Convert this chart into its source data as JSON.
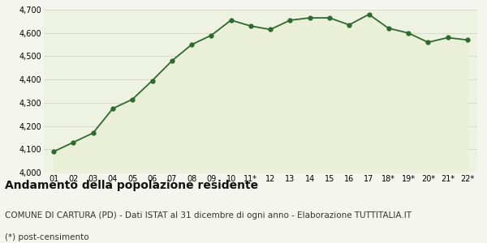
{
  "x_labels": [
    "01",
    "02",
    "03",
    "04",
    "05",
    "06",
    "07",
    "08",
    "09",
    "10",
    "11*",
    "12",
    "13",
    "14",
    "15",
    "16",
    "17",
    "18*",
    "19*",
    "20*",
    "21*",
    "22*"
  ],
  "y_values": [
    4090,
    4130,
    4170,
    4275,
    4315,
    4395,
    4480,
    4550,
    4590,
    4655,
    4630,
    4615,
    4655,
    4665,
    4665,
    4635,
    4680,
    4620,
    4600,
    4560,
    4580,
    4570
  ],
  "ylim": [
    4000,
    4700
  ],
  "yticks": [
    4000,
    4100,
    4200,
    4300,
    4400,
    4500,
    4600,
    4700
  ],
  "line_color": "#2d6a2d",
  "fill_color": "#eaf0d8",
  "marker_color": "#2d6a2d",
  "bg_color": "#f5f5f0",
  "plot_bg": "#eef2e0",
  "grid_color": "#d8d8c8",
  "title": "Andamento della popolazione residente",
  "subtitle": "COMUNE DI CARTURA (PD) - Dati ISTAT al 31 dicembre di ogni anno - Elaborazione TUTTITALIA.IT",
  "footnote": "(*) post-censimento",
  "title_fontsize": 10,
  "subtitle_fontsize": 7.5,
  "footnote_fontsize": 7.5
}
